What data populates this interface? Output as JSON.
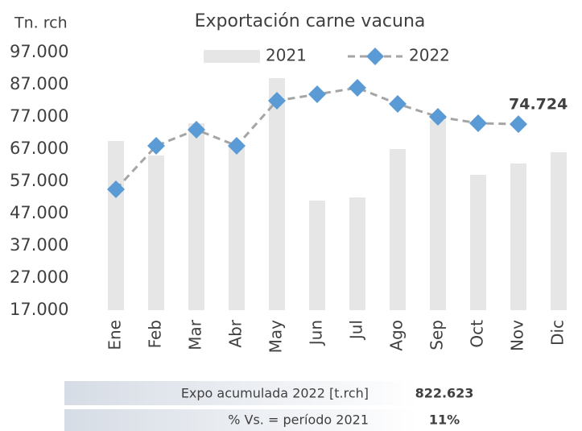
{
  "chart_data": {
    "type": "bar-line",
    "title": "Exportación carne vacuna",
    "y_label": "Tn. rch",
    "categories": [
      "Ene",
      "Feb",
      "Mar",
      "Abr",
      "May",
      "Jun",
      "Jul",
      "Ago",
      "Sep",
      "Oct",
      "Nov",
      "Dic"
    ],
    "series": [
      {
        "name": "2021",
        "type": "bar",
        "color": "#e7e6e6",
        "values": [
          69500,
          65000,
          75000,
          68000,
          89000,
          51000,
          52000,
          67000,
          76000,
          59000,
          62500,
          66000
        ]
      },
      {
        "name": "2022",
        "type": "line",
        "color": "#5b9bd5",
        "line_color": "#a5a5a5",
        "label_color": "#44668f",
        "values": [
          54500,
          68000,
          73000,
          68000,
          82000,
          84000,
          86000,
          81000,
          77000,
          75000,
          74724,
          null
        ],
        "value_labels": [
          null,
          null,
          null,
          null,
          null,
          null,
          null,
          null,
          null,
          null,
          "74.724",
          null
        ]
      }
    ],
    "ylim": [
      17000,
      97000
    ],
    "yticks": [
      {
        "value": 17000,
        "label": "17.000"
      },
      {
        "value": 27000,
        "label": "27.000"
      },
      {
        "value": 37000,
        "label": "37.000"
      },
      {
        "value": 47000,
        "label": "47.000"
      },
      {
        "value": 57000,
        "label": "57.000"
      },
      {
        "value": 67000,
        "label": "67.000"
      },
      {
        "value": 77000,
        "label": "77.000"
      },
      {
        "value": 87000,
        "label": "87.000"
      },
      {
        "value": 97000,
        "label": "97.000"
      }
    ],
    "grid": false,
    "legend": "top"
  },
  "summary": [
    {
      "label": "Expo acumulada 2022 [t.rch]",
      "value": "822.623"
    },
    {
      "label": "% Vs. = período 2021",
      "value": "11%"
    }
  ]
}
